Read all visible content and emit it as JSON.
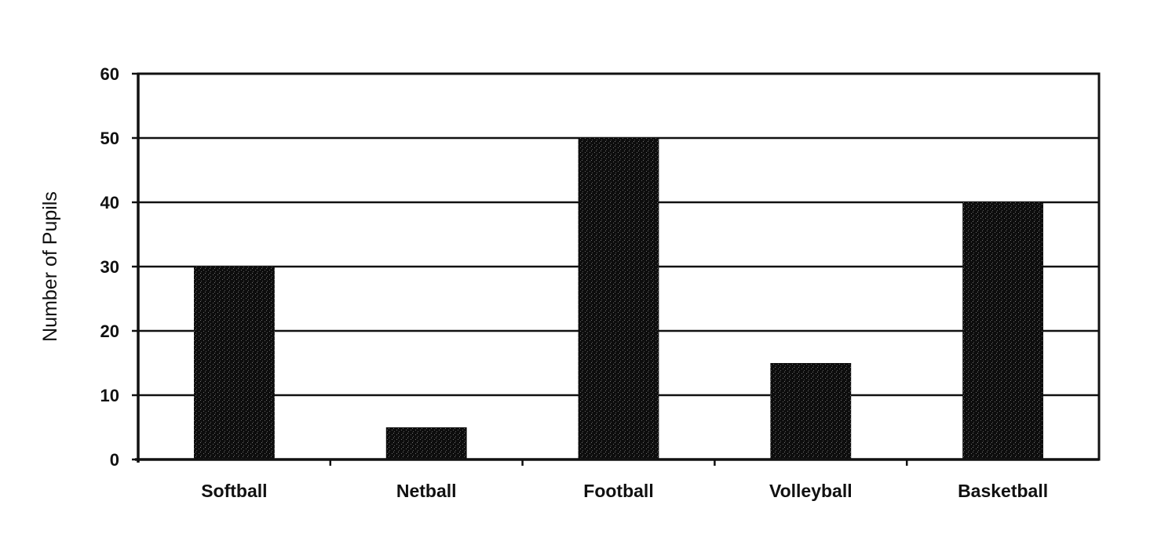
{
  "chart_data": {
    "type": "bar",
    "title": "",
    "xlabel": "",
    "ylabel": "Number of Pupils",
    "categories": [
      "Softball",
      "Netball",
      "Football",
      "Volleyball",
      "Basketball"
    ],
    "values": [
      30,
      5,
      50,
      15,
      40
    ],
    "ylim": [
      0,
      60
    ],
    "yticks": [
      0,
      10,
      20,
      30,
      40,
      50,
      60
    ],
    "grid": true,
    "legend": "none",
    "bar_color": "#111111"
  }
}
